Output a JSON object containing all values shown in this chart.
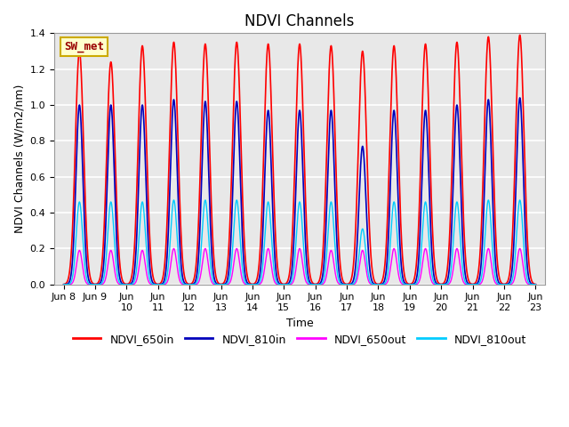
{
  "title": "NDVI Channels",
  "ylabel": "NDVI Channels (W/m2/nm)",
  "xlabel": "Time",
  "annotation": "SW_met",
  "ylim": [
    0,
    1.4
  ],
  "start_day": 8,
  "end_day": 23,
  "colors": {
    "NDVI_650in": "#ff0000",
    "NDVI_810in": "#0000bb",
    "NDVI_650out": "#ff00ff",
    "NDVI_810out": "#00ccff"
  },
  "peak_heights": {
    "NDVI_650in": [
      1.3,
      1.24,
      1.33,
      1.35,
      1.34,
      1.35,
      1.34,
      1.34,
      1.33,
      1.3,
      1.33,
      1.34,
      1.35,
      1.38,
      1.39
    ],
    "NDVI_810in": [
      1.0,
      1.0,
      1.0,
      1.03,
      1.02,
      1.02,
      0.97,
      0.97,
      0.97,
      0.77,
      0.97,
      0.97,
      1.0,
      1.03,
      1.04
    ],
    "NDVI_650out": [
      0.19,
      0.19,
      0.19,
      0.2,
      0.2,
      0.2,
      0.2,
      0.2,
      0.19,
      0.19,
      0.2,
      0.2,
      0.2,
      0.2,
      0.2
    ],
    "NDVI_810out": [
      0.46,
      0.46,
      0.46,
      0.47,
      0.47,
      0.47,
      0.46,
      0.46,
      0.46,
      0.31,
      0.46,
      0.46,
      0.46,
      0.47,
      0.47
    ]
  },
  "peak_widths": {
    "NDVI_650in": 0.13,
    "NDVI_810in": 0.11,
    "NDVI_650out": 0.09,
    "NDVI_810out": 0.1
  },
  "line_widths": {
    "NDVI_650in": 1.2,
    "NDVI_810in": 1.2,
    "NDVI_650out": 1.0,
    "NDVI_810out": 1.0
  },
  "background_color": "#e8e8e8",
  "grid_color": "#ffffff",
  "title_fontsize": 12,
  "label_fontsize": 9,
  "tick_fontsize": 8
}
